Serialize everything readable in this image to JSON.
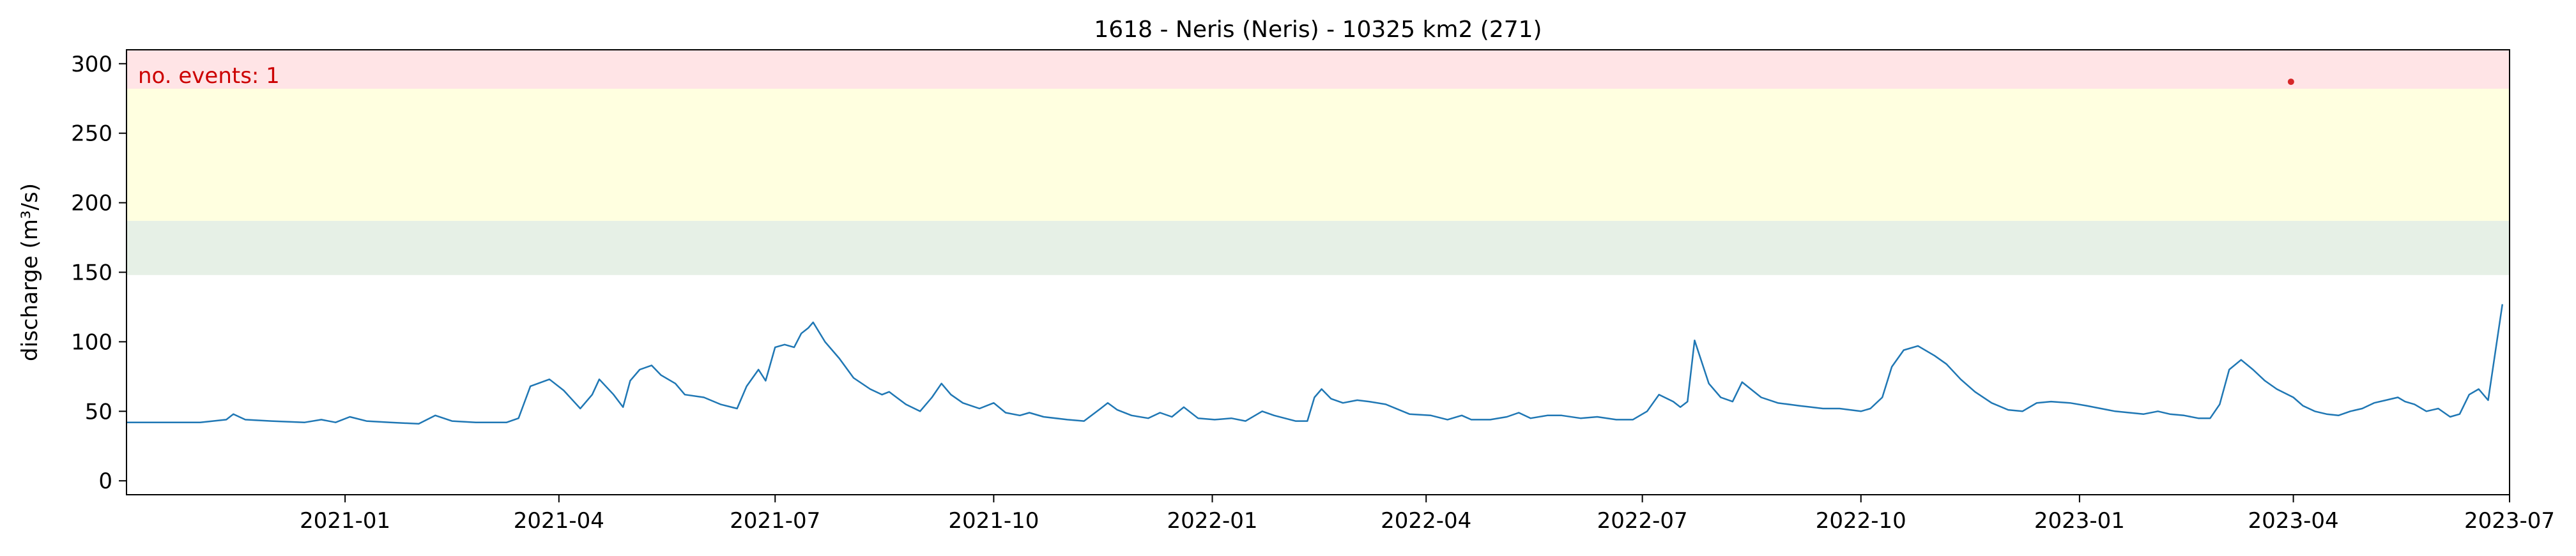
{
  "chart_data": {
    "type": "line",
    "title": "1618 - Neris (Neris) - 10325 km2 (271)",
    "xlabel": "",
    "ylabel": "discharge (m³/s)",
    "xlim": [
      "2020-10-01",
      "2023-07-01"
    ],
    "ylim": [
      -10,
      310
    ],
    "x_ticks": [
      "2021-01",
      "2021-04",
      "2021-07",
      "2021-10",
      "2022-01",
      "2022-04",
      "2022-07",
      "2022-10",
      "2023-01",
      "2023-04",
      "2023-07"
    ],
    "y_ticks": [
      0,
      50,
      100,
      150,
      200,
      250,
      300
    ],
    "grid": false,
    "threshold_bands": [
      {
        "from": 148,
        "to": 187,
        "color": "#e6f0e6"
      },
      {
        "from": 187,
        "to": 282,
        "color": "#ffffe0"
      },
      {
        "from": 282,
        "to": 310,
        "color": "#ffe4e6"
      }
    ],
    "annotation": {
      "text": "no. events: 1",
      "color": "#cc0000"
    },
    "series": [
      {
        "color": "#1f77b4",
        "points": [
          [
            "2020-10-01",
            42
          ],
          [
            "2020-10-10",
            42
          ],
          [
            "2020-10-20",
            42
          ],
          [
            "2020-11-01",
            42
          ],
          [
            "2020-11-12",
            44
          ],
          [
            "2020-11-15",
            48
          ],
          [
            "2020-11-20",
            44
          ],
          [
            "2020-12-01",
            43
          ],
          [
            "2020-12-15",
            42
          ],
          [
            "2020-12-22",
            44
          ],
          [
            "2020-12-28",
            42
          ],
          [
            "2021-01-03",
            46
          ],
          [
            "2021-01-10",
            43
          ],
          [
            "2021-01-20",
            42
          ],
          [
            "2021-02-01",
            41
          ],
          [
            "2021-02-08",
            47
          ],
          [
            "2021-02-15",
            43
          ],
          [
            "2021-02-25",
            42
          ],
          [
            "2021-03-10",
            42
          ],
          [
            "2021-03-15",
            45
          ],
          [
            "2021-03-20",
            68
          ],
          [
            "2021-03-28",
            73
          ],
          [
            "2021-04-03",
            65
          ],
          [
            "2021-04-10",
            52
          ],
          [
            "2021-04-15",
            62
          ],
          [
            "2021-04-18",
            73
          ],
          [
            "2021-04-24",
            62
          ],
          [
            "2021-04-28",
            53
          ],
          [
            "2021-05-01",
            72
          ],
          [
            "2021-05-05",
            80
          ],
          [
            "2021-05-10",
            83
          ],
          [
            "2021-05-14",
            76
          ],
          [
            "2021-05-20",
            70
          ],
          [
            "2021-05-24",
            62
          ],
          [
            "2021-06-01",
            60
          ],
          [
            "2021-06-08",
            55
          ],
          [
            "2021-06-15",
            52
          ],
          [
            "2021-06-19",
            68
          ],
          [
            "2021-06-24",
            80
          ],
          [
            "2021-06-27",
            72
          ],
          [
            "2021-07-01",
            96
          ],
          [
            "2021-07-05",
            98
          ],
          [
            "2021-07-09",
            96
          ],
          [
            "2021-07-12",
            106
          ],
          [
            "2021-07-15",
            110
          ],
          [
            "2021-07-17",
            114
          ],
          [
            "2021-07-22",
            100
          ],
          [
            "2021-07-28",
            88
          ],
          [
            "2021-08-03",
            74
          ],
          [
            "2021-08-10",
            66
          ],
          [
            "2021-08-15",
            62
          ],
          [
            "2021-08-18",
            64
          ],
          [
            "2021-08-25",
            55
          ],
          [
            "2021-08-31",
            50
          ],
          [
            "2021-09-05",
            60
          ],
          [
            "2021-09-09",
            70
          ],
          [
            "2021-09-13",
            62
          ],
          [
            "2021-09-18",
            56
          ],
          [
            "2021-09-25",
            52
          ],
          [
            "2021-10-01",
            56
          ],
          [
            "2021-10-06",
            49
          ],
          [
            "2021-10-12",
            47
          ],
          [
            "2021-10-16",
            49
          ],
          [
            "2021-10-22",
            46
          ],
          [
            "2021-11-01",
            44
          ],
          [
            "2021-11-08",
            43
          ],
          [
            "2021-11-15",
            52
          ],
          [
            "2021-11-18",
            56
          ],
          [
            "2021-11-22",
            51
          ],
          [
            "2021-11-28",
            47
          ],
          [
            "2021-12-05",
            45
          ],
          [
            "2021-12-10",
            49
          ],
          [
            "2021-12-15",
            46
          ],
          [
            "2021-12-20",
            53
          ],
          [
            "2021-12-26",
            45
          ],
          [
            "2022-01-02",
            44
          ],
          [
            "2022-01-09",
            45
          ],
          [
            "2022-01-15",
            43
          ],
          [
            "2022-01-22",
            50
          ],
          [
            "2022-01-27",
            47
          ],
          [
            "2022-02-05",
            43
          ],
          [
            "2022-02-10",
            43
          ],
          [
            "2022-02-13",
            60
          ],
          [
            "2022-02-16",
            66
          ],
          [
            "2022-02-20",
            59
          ],
          [
            "2022-02-25",
            56
          ],
          [
            "2022-03-03",
            58
          ],
          [
            "2022-03-08",
            57
          ],
          [
            "2022-03-15",
            55
          ],
          [
            "2022-03-25",
            48
          ],
          [
            "2022-04-03",
            47
          ],
          [
            "2022-04-10",
            44
          ],
          [
            "2022-04-16",
            47
          ],
          [
            "2022-04-20",
            44
          ],
          [
            "2022-04-28",
            44
          ],
          [
            "2022-05-05",
            46
          ],
          [
            "2022-05-10",
            49
          ],
          [
            "2022-05-15",
            45
          ],
          [
            "2022-05-22",
            47
          ],
          [
            "2022-05-28",
            47
          ],
          [
            "2022-06-05",
            45
          ],
          [
            "2022-06-12",
            46
          ],
          [
            "2022-06-20",
            44
          ],
          [
            "2022-06-27",
            44
          ],
          [
            "2022-07-03",
            50
          ],
          [
            "2022-07-08",
            62
          ],
          [
            "2022-07-14",
            57
          ],
          [
            "2022-07-17",
            53
          ],
          [
            "2022-07-20",
            57
          ],
          [
            "2022-07-23",
            101
          ],
          [
            "2022-07-29",
            70
          ],
          [
            "2022-08-03",
            60
          ],
          [
            "2022-08-08",
            57
          ],
          [
            "2022-08-12",
            71
          ],
          [
            "2022-08-20",
            60
          ],
          [
            "2022-08-27",
            56
          ],
          [
            "2022-09-05",
            54
          ],
          [
            "2022-09-10",
            53
          ],
          [
            "2022-09-15",
            52
          ],
          [
            "2022-09-22",
            52
          ],
          [
            "2022-10-01",
            50
          ],
          [
            "2022-10-05",
            52
          ],
          [
            "2022-10-10",
            60
          ],
          [
            "2022-10-14",
            82
          ],
          [
            "2022-10-19",
            94
          ],
          [
            "2022-10-25",
            97
          ],
          [
            "2022-11-01",
            90
          ],
          [
            "2022-11-06",
            84
          ],
          [
            "2022-11-12",
            73
          ],
          [
            "2022-11-18",
            64
          ],
          [
            "2022-11-25",
            56
          ],
          [
            "2022-12-02",
            51
          ],
          [
            "2022-12-08",
            50
          ],
          [
            "2022-12-14",
            56
          ],
          [
            "2022-12-20",
            57
          ],
          [
            "2022-12-28",
            56
          ],
          [
            "2023-01-04",
            54
          ],
          [
            "2023-01-10",
            52
          ],
          [
            "2023-01-16",
            50
          ],
          [
            "2023-01-22",
            49
          ],
          [
            "2023-01-28",
            48
          ],
          [
            "2023-02-03",
            50
          ],
          [
            "2023-02-08",
            48
          ],
          [
            "2023-02-14",
            47
          ],
          [
            "2023-02-20",
            45
          ],
          [
            "2023-02-25",
            45
          ],
          [
            "2023-03-01",
            55
          ],
          [
            "2023-03-05",
            80
          ],
          [
            "2023-03-10",
            87
          ],
          [
            "2023-03-15",
            80
          ],
          [
            "2023-03-20",
            72
          ],
          [
            "2023-03-25",
            66
          ],
          [
            "2023-04-01",
            60
          ],
          [
            "2023-04-05",
            54
          ],
          [
            "2023-04-10",
            50
          ],
          [
            "2023-04-15",
            48
          ],
          [
            "2023-04-20",
            47
          ],
          [
            "2023-04-25",
            50
          ],
          [
            "2023-04-30",
            52
          ],
          [
            "2023-05-05",
            56
          ],
          [
            "2023-05-10",
            58
          ],
          [
            "2023-05-15",
            60
          ],
          [
            "2023-05-18",
            57
          ],
          [
            "2023-05-22",
            55
          ],
          [
            "2023-05-27",
            50
          ],
          [
            "2023-06-01",
            52
          ],
          [
            "2023-06-06",
            46
          ],
          [
            "2023-06-10",
            48
          ],
          [
            "2023-06-14",
            62
          ],
          [
            "2023-06-18",
            66
          ],
          [
            "2023-06-22",
            58
          ],
          [
            "2023-06-28",
            127
          ]
        ]
      }
    ],
    "event_marker": {
      "x": "2023-03-31",
      "y": 287,
      "color": "#d62728"
    }
  }
}
